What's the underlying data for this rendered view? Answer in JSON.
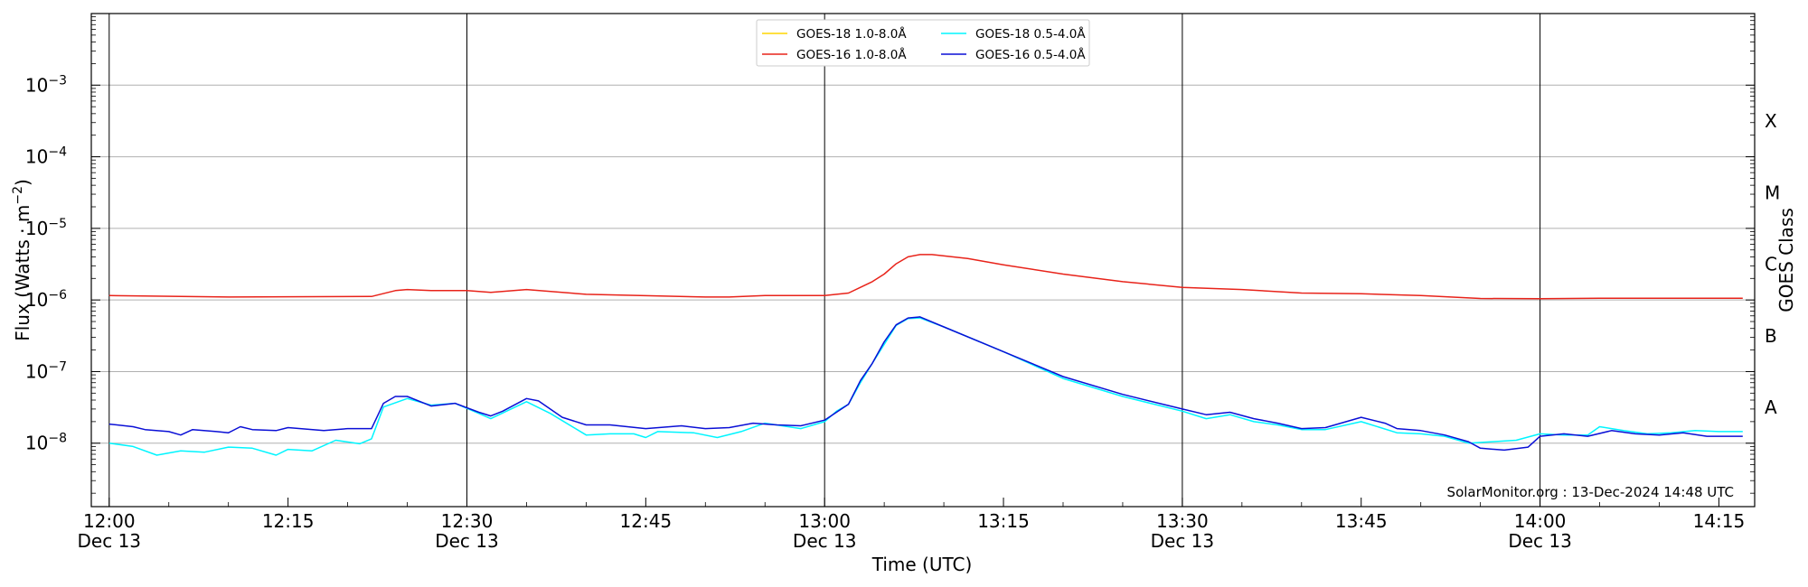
{
  "chart_data": {
    "type": "line",
    "title": "",
    "xlabel": "Time (UTC)",
    "ylabel": "Flux (Watts · m",
    "ylabel_sup": "−2",
    "ylabel_close": ")",
    "right_label": "GOES Class",
    "yscale": "log",
    "ylim": [
      1.3e-09,
      0.01
    ],
    "xlim": [
      "11:58:30",
      "14:18"
    ],
    "grid": "horizontal at decades",
    "legend_position": "top-center",
    "y_ticks": [
      {
        "value": 1e-08,
        "label": "10",
        "exp": "−8"
      },
      {
        "value": 1e-07,
        "label": "10",
        "exp": "−7"
      },
      {
        "value": 1e-06,
        "label": "10",
        "exp": "−6"
      },
      {
        "value": 1e-05,
        "label": "10",
        "exp": "−5"
      },
      {
        "value": 0.0001,
        "label": "10",
        "exp": "−4"
      },
      {
        "value": 0.001,
        "label": "10",
        "exp": "−3"
      }
    ],
    "x_ticks": [
      {
        "time": "12:00",
        "label": "12:00",
        "sublabel": "Dec 13",
        "vline": true
      },
      {
        "time": "12:15",
        "label": "12:15",
        "sublabel": "",
        "vline": false
      },
      {
        "time": "12:30",
        "label": "12:30",
        "sublabel": "Dec 13",
        "vline": true
      },
      {
        "time": "12:45",
        "label": "12:45",
        "sublabel": "",
        "vline": false
      },
      {
        "time": "13:00",
        "label": "13:00",
        "sublabel": "Dec 13",
        "vline": true
      },
      {
        "time": "13:15",
        "label": "13:15",
        "sublabel": "",
        "vline": false
      },
      {
        "time": "13:30",
        "label": "13:30",
        "sublabel": "Dec 13",
        "vline": true
      },
      {
        "time": "13:45",
        "label": "13:45",
        "sublabel": "",
        "vline": false
      },
      {
        "time": "14:00",
        "label": "14:00",
        "sublabel": "Dec 13",
        "vline": true
      },
      {
        "time": "14:15",
        "label": "14:15",
        "sublabel": "",
        "vline": false
      }
    ],
    "goes_classes": [
      {
        "label": "A",
        "value": 3.16e-08
      },
      {
        "label": "B",
        "value": 3.16e-07
      },
      {
        "label": "C",
        "value": 3.16e-06
      },
      {
        "label": "M",
        "value": 3.16e-05
      },
      {
        "label": "X",
        "value": 0.000316
      }
    ],
    "annotation": "SolarMonitor.org : 13-Dec-2024 14:48 UTC",
    "series": [
      {
        "name": "GOES-18 1.0-8.0Å",
        "color": "#ffd500",
        "points": []
      },
      {
        "name": "GOES-16 1.0-8.0Å",
        "color": "#e8231a",
        "points": [
          [
            "12:00",
            1.15e-06
          ],
          [
            "12:10",
            1.1e-06
          ],
          [
            "12:22",
            1.12e-06
          ],
          [
            "12:24",
            1.35e-06
          ],
          [
            "12:25",
            1.4e-06
          ],
          [
            "12:27",
            1.35e-06
          ],
          [
            "12:30",
            1.35e-06
          ],
          [
            "12:32",
            1.28e-06
          ],
          [
            "12:35",
            1.4e-06
          ],
          [
            "12:40",
            1.2e-06
          ],
          [
            "12:50",
            1.1e-06
          ],
          [
            "12:52",
            1.1e-06
          ],
          [
            "12:55",
            1.15e-06
          ],
          [
            "13:00",
            1.15e-06
          ],
          [
            "13:02",
            1.25e-06
          ],
          [
            "13:03",
            1.5e-06
          ],
          [
            "13:04",
            1.8e-06
          ],
          [
            "13:05",
            2.3e-06
          ],
          [
            "13:06",
            3.2e-06
          ],
          [
            "13:07",
            4e-06
          ],
          [
            "13:08",
            4.3e-06
          ],
          [
            "13:09",
            4.3e-06
          ],
          [
            "13:12",
            3.8e-06
          ],
          [
            "13:15",
            3.1e-06
          ],
          [
            "13:20",
            2.3e-06
          ],
          [
            "13:25",
            1.8e-06
          ],
          [
            "13:30",
            1.5e-06
          ],
          [
            "13:35",
            1.4e-06
          ],
          [
            "13:40",
            1.25e-06
          ],
          [
            "13:45",
            1.22e-06
          ],
          [
            "13:50",
            1.15e-06
          ],
          [
            "13:55",
            1.05e-06
          ],
          [
            "14:00",
            1.04e-06
          ],
          [
            "14:05",
            1.06e-06
          ],
          [
            "14:10",
            1.06e-06
          ],
          [
            "14:17",
            1.06e-06
          ]
        ]
      },
      {
        "name": "GOES-18 0.5-4.0Å",
        "color": "#00f5ff",
        "points": [
          [
            "12:00",
            1e-08
          ],
          [
            "12:02",
            9e-09
          ],
          [
            "12:04",
            6.8e-09
          ],
          [
            "12:06",
            7.8e-09
          ],
          [
            "12:08",
            7.5e-09
          ],
          [
            "12:10",
            8.8e-09
          ],
          [
            "12:12",
            8.5e-09
          ],
          [
            "12:14",
            6.8e-09
          ],
          [
            "12:15",
            8.2e-09
          ],
          [
            "12:17",
            7.8e-09
          ],
          [
            "12:19",
            1.1e-08
          ],
          [
            "12:21",
            9.8e-09
          ],
          [
            "12:22",
            1.15e-08
          ],
          [
            "12:23",
            3.2e-08
          ],
          [
            "12:25",
            4.2e-08
          ],
          [
            "12:27",
            3.4e-08
          ],
          [
            "12:29",
            3.6e-08
          ],
          [
            "12:31",
            2.6e-08
          ],
          [
            "12:32",
            2.2e-08
          ],
          [
            "12:35",
            3.8e-08
          ],
          [
            "12:37",
            2.6e-08
          ],
          [
            "12:40",
            1.3e-08
          ],
          [
            "12:42",
            1.35e-08
          ],
          [
            "12:44",
            1.35e-08
          ],
          [
            "12:45",
            1.2e-08
          ],
          [
            "12:46",
            1.45e-08
          ],
          [
            "12:49",
            1.4e-08
          ],
          [
            "12:51",
            1.2e-08
          ],
          [
            "12:53",
            1.45e-08
          ],
          [
            "12:55",
            1.9e-08
          ],
          [
            "12:58",
            1.6e-08
          ],
          [
            "13:00",
            2e-08
          ],
          [
            "13:01",
            2.8e-08
          ],
          [
            "13:02",
            3.5e-08
          ],
          [
            "13:03",
            7e-08
          ],
          [
            "13:04",
            1.3e-07
          ],
          [
            "13:05",
            2.4e-07
          ],
          [
            "13:06",
            4.4e-07
          ],
          [
            "13:07",
            5.5e-07
          ],
          [
            "13:08",
            5.6e-07
          ],
          [
            "13:10",
            4.2e-07
          ],
          [
            "13:15",
            1.9e-07
          ],
          [
            "13:20",
            8e-08
          ],
          [
            "13:25",
            4.5e-08
          ],
          [
            "13:30",
            2.8e-08
          ],
          [
            "13:32",
            2.2e-08
          ],
          [
            "13:34",
            2.5e-08
          ],
          [
            "13:36",
            2e-08
          ],
          [
            "13:38",
            1.8e-08
          ],
          [
            "13:40",
            1.55e-08
          ],
          [
            "13:42",
            1.55e-08
          ],
          [
            "13:45",
            2e-08
          ],
          [
            "13:48",
            1.4e-08
          ],
          [
            "13:50",
            1.35e-08
          ],
          [
            "13:52",
            1.25e-08
          ],
          [
            "13:54",
            1e-08
          ],
          [
            "13:56",
            1.05e-08
          ],
          [
            "13:58",
            1.1e-08
          ],
          [
            "14:00",
            1.35e-08
          ],
          [
            "14:02",
            1.3e-08
          ],
          [
            "14:04",
            1.3e-08
          ],
          [
            "14:05",
            1.7e-08
          ],
          [
            "14:07",
            1.5e-08
          ],
          [
            "14:09",
            1.35e-08
          ],
          [
            "14:11",
            1.4e-08
          ],
          [
            "14:13",
            1.5e-08
          ],
          [
            "14:15",
            1.45e-08
          ],
          [
            "14:17",
            1.45e-08
          ]
        ]
      },
      {
        "name": "GOES-16 0.5-4.0Å",
        "color": "#0a0fd6",
        "points": [
          [
            "12:00",
            1.85e-08
          ],
          [
            "12:02",
            1.7e-08
          ],
          [
            "12:03",
            1.55e-08
          ],
          [
            "12:05",
            1.45e-08
          ],
          [
            "12:06",
            1.3e-08
          ],
          [
            "12:07",
            1.55e-08
          ],
          [
            "12:09",
            1.45e-08
          ],
          [
            "12:10",
            1.4e-08
          ],
          [
            "12:11",
            1.7e-08
          ],
          [
            "12:12",
            1.55e-08
          ],
          [
            "12:14",
            1.5e-08
          ],
          [
            "12:15",
            1.65e-08
          ],
          [
            "12:18",
            1.5e-08
          ],
          [
            "12:20",
            1.6e-08
          ],
          [
            "12:22",
            1.6e-08
          ],
          [
            "12:23",
            3.6e-08
          ],
          [
            "12:24",
            4.5e-08
          ],
          [
            "12:25",
            4.5e-08
          ],
          [
            "12:27",
            3.3e-08
          ],
          [
            "12:29",
            3.6e-08
          ],
          [
            "12:31",
            2.7e-08
          ],
          [
            "12:32",
            2.4e-08
          ],
          [
            "12:33",
            2.8e-08
          ],
          [
            "12:35",
            4.2e-08
          ],
          [
            "12:36",
            3.9e-08
          ],
          [
            "12:38",
            2.3e-08
          ],
          [
            "12:40",
            1.8e-08
          ],
          [
            "12:42",
            1.8e-08
          ],
          [
            "12:45",
            1.6e-08
          ],
          [
            "12:48",
            1.75e-08
          ],
          [
            "12:50",
            1.6e-08
          ],
          [
            "12:52",
            1.65e-08
          ],
          [
            "12:54",
            1.9e-08
          ],
          [
            "12:56",
            1.8e-08
          ],
          [
            "12:58",
            1.75e-08
          ],
          [
            "13:00",
            2.1e-08
          ],
          [
            "13:02",
            3.5e-08
          ],
          [
            "13:03",
            7.5e-08
          ],
          [
            "13:04",
            1.3e-07
          ],
          [
            "13:05",
            2.6e-07
          ],
          [
            "13:06",
            4.5e-07
          ],
          [
            "13:07",
            5.6e-07
          ],
          [
            "13:08",
            5.8e-07
          ],
          [
            "13:10",
            4.2e-07
          ],
          [
            "13:15",
            1.9e-07
          ],
          [
            "13:20",
            8.5e-08
          ],
          [
            "13:25",
            4.8e-08
          ],
          [
            "13:30",
            3e-08
          ],
          [
            "13:32",
            2.5e-08
          ],
          [
            "13:34",
            2.7e-08
          ],
          [
            "13:36",
            2.2e-08
          ],
          [
            "13:38",
            1.9e-08
          ],
          [
            "13:40",
            1.6e-08
          ],
          [
            "13:42",
            1.65e-08
          ],
          [
            "13:45",
            2.3e-08
          ],
          [
            "13:47",
            1.9e-08
          ],
          [
            "13:48",
            1.6e-08
          ],
          [
            "13:50",
            1.5e-08
          ],
          [
            "13:52",
            1.3e-08
          ],
          [
            "13:54",
            1.05e-08
          ],
          [
            "13:55",
            8.5e-09
          ],
          [
            "13:57",
            8e-09
          ],
          [
            "13:59",
            8.8e-09
          ],
          [
            "14:00",
            1.25e-08
          ],
          [
            "14:02",
            1.35e-08
          ],
          [
            "14:04",
            1.25e-08
          ],
          [
            "14:06",
            1.5e-08
          ],
          [
            "14:08",
            1.35e-08
          ],
          [
            "14:10",
            1.3e-08
          ],
          [
            "14:12",
            1.4e-08
          ],
          [
            "14:14",
            1.25e-08
          ],
          [
            "14:17",
            1.25e-08
          ]
        ]
      }
    ]
  }
}
